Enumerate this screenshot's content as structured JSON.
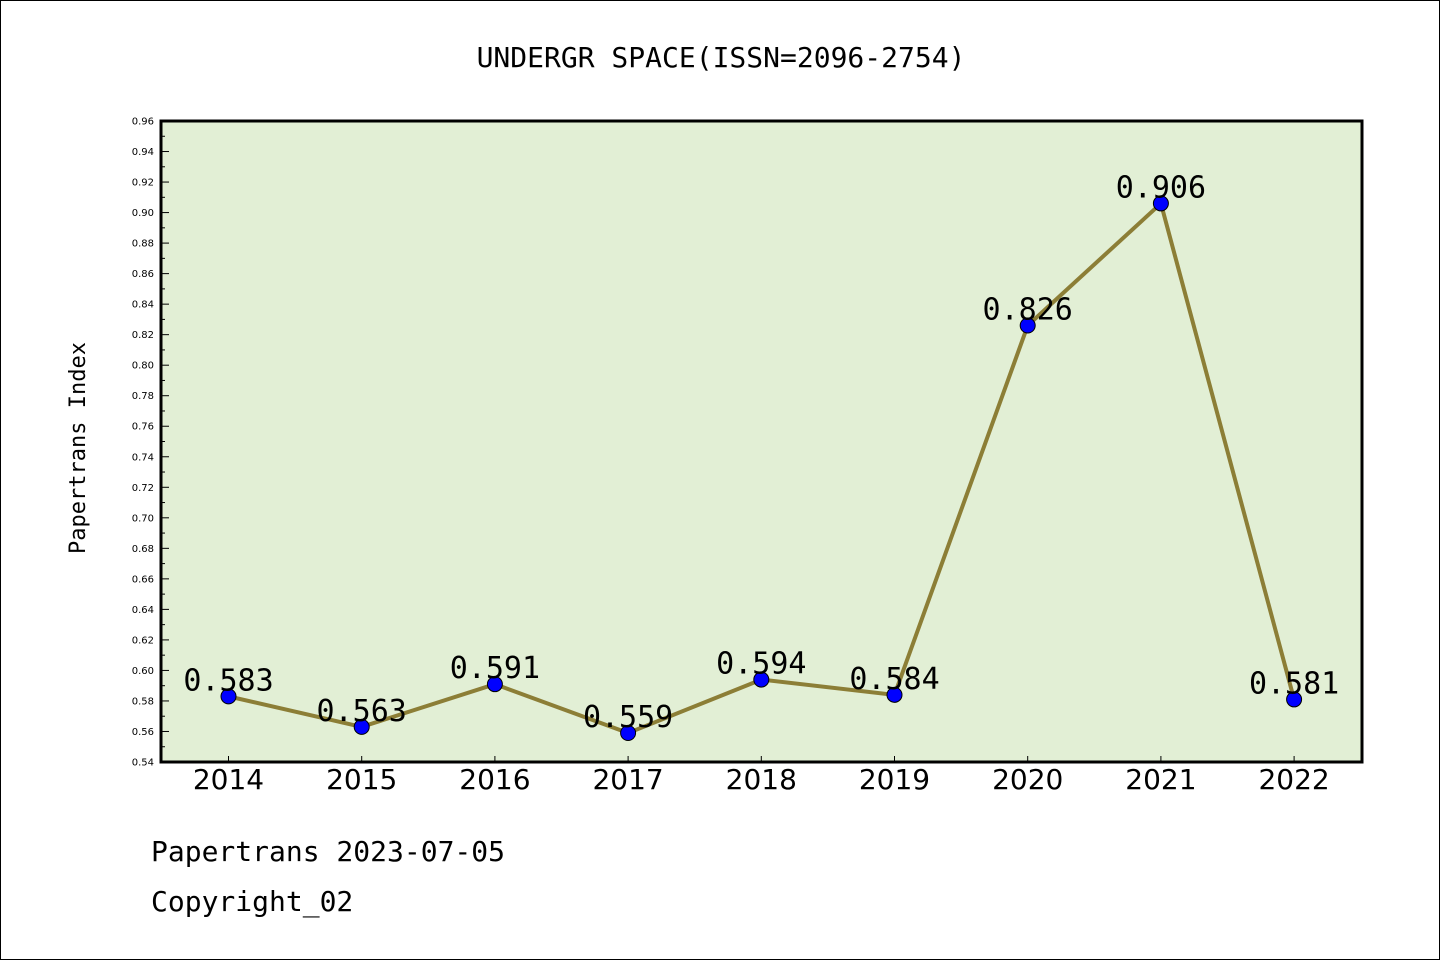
{
  "chart_data": {
    "type": "line",
    "title": "UNDERGR SPACE(ISSN=2096-2754)",
    "xlabel": "",
    "ylabel": "Papertrans Index",
    "categories": [
      "2014",
      "2015",
      "2016",
      "2017",
      "2018",
      "2019",
      "2020",
      "2021",
      "2022"
    ],
    "values": [
      0.583,
      0.563,
      0.591,
      0.559,
      0.594,
      0.584,
      0.826,
      0.906,
      0.581
    ],
    "data_labels": [
      "0.583",
      "0.563",
      "0.591",
      "0.559",
      "0.594",
      "0.584",
      "0.826",
      "0.906",
      "0.581"
    ],
    "ylim": [
      0.54,
      0.96
    ],
    "yticks": [
      "0.54",
      "0.56",
      "0.58",
      "0.60",
      "0.62",
      "0.64",
      "0.66",
      "0.68",
      "0.70",
      "0.72",
      "0.74",
      "0.76",
      "0.78",
      "0.80",
      "0.82",
      "0.84",
      "0.86",
      "0.88",
      "0.90",
      "0.92",
      "0.94",
      "0.96"
    ],
    "grid": false,
    "colors": {
      "plot_background": "#e2efd5",
      "line": "#8c7e36",
      "marker": "#0000ff"
    }
  },
  "footer": {
    "line1": "Papertrans 2023-07-05",
    "line2": "Copyright_02"
  }
}
